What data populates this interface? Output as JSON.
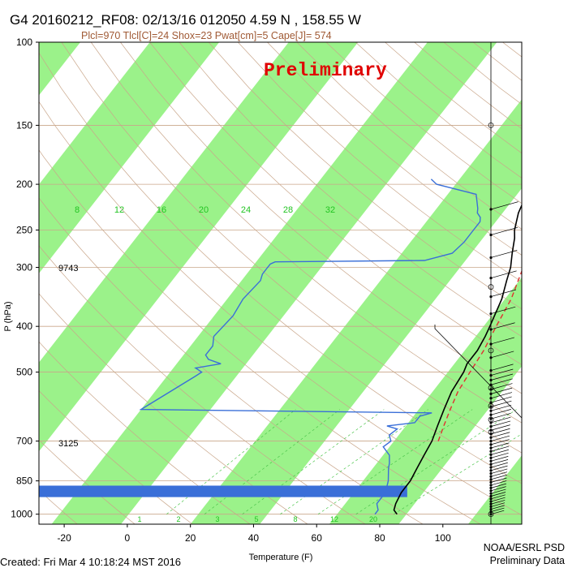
{
  "header": {
    "title": "G4 20160212_RF08: 02/13/16 012050    4.59 N , 158.55 W",
    "subtitle": "Plcl=970 Tlcl[C]=24 Shox=23 Pwat[cm]=5 Cape[J]= 574",
    "watermark": "Preliminary"
  },
  "footer": {
    "created": "Created: Fri Mar  4 10:18:24 MST 2016",
    "credit_line1": "NOAA/ESRL PSD",
    "credit_line2": "Preliminary Data"
  },
  "chart_data": {
    "type": "line",
    "title": "G4 20160212_RF08: 02/13/16 012050    4.59 N , 158.55 W",
    "xlabel": "Temperature (F)",
    "ylabel": "P (hPa)",
    "xlim": [
      -28,
      125
    ],
    "ylim": [
      1050,
      100
    ],
    "y_scale": "log",
    "x_ticks": [
      -20,
      0,
      20,
      40,
      60,
      80,
      100
    ],
    "y_ticks": [
      100,
      150,
      200,
      250,
      300,
      400,
      500,
      700,
      850,
      1000
    ],
    "mixing_ratio_labels": [
      "8",
      "12",
      "16",
      "20",
      "24",
      "28",
      "32"
    ],
    "bottom_mixing_labels": [
      "1",
      "2",
      "3",
      "5",
      "8",
      "12",
      "20"
    ],
    "height_labels": [
      "9743",
      "3125"
    ],
    "series": [
      {
        "color": "#000000",
        "x": [
          83,
          81,
          80,
          79,
          79,
          78,
          77,
          76,
          74,
          72,
          70,
          69,
          68,
          68,
          67,
          66,
          63,
          60,
          58,
          55,
          52,
          50,
          47,
          45,
          42,
          39,
          35
        ],
        "y": [
          1000,
          980,
          950,
          900,
          850,
          800,
          750,
          700,
          650,
          600,
          550,
          500,
          480,
          450,
          420,
          400,
          350,
          320,
          300,
          280,
          260,
          250,
          230,
          210,
          200,
          185,
          170
        ]
      },
      {
        "color": "#e03030",
        "dashed": true,
        "x": [
          78,
          76,
          74,
          72,
          71,
          70,
          68,
          66,
          62,
          58,
          53,
          48,
          44,
          40
        ],
        "y": [
          700,
          650,
          600,
          550,
          500,
          450,
          400,
          350,
          300,
          260,
          230,
          210,
          195,
          185
        ]
      },
      {
        "color": "#3a6fd8",
        "x": [
          76,
          76,
          74,
          74,
          72,
          69,
          68,
          66,
          62,
          63,
          61,
          62,
          58,
          66,
          66,
          69,
          -24,
          -15,
          -14,
          -17,
          -10,
          -15,
          -17,
          -17,
          -19,
          -18,
          -19,
          -18,
          -19,
          -19,
          -19,
          -18,
          29,
          36,
          37,
          37,
          37,
          36,
          34,
          33,
          29,
          14,
          11
        ],
        "y": [
          1000,
          980,
          950,
          900,
          850,
          800,
          780,
          750,
          720,
          700,
          680,
          660,
          650,
          640,
          620,
          610,
          600,
          510,
          500,
          490,
          480,
          470,
          460,
          440,
          420,
          380,
          350,
          320,
          310,
          300,
          295,
          292,
          290,
          280,
          265,
          250,
          240,
          235,
          230,
          225,
          210,
          200,
          195
        ]
      }
    ],
    "wind_profile": "wind barbs along right side"
  }
}
